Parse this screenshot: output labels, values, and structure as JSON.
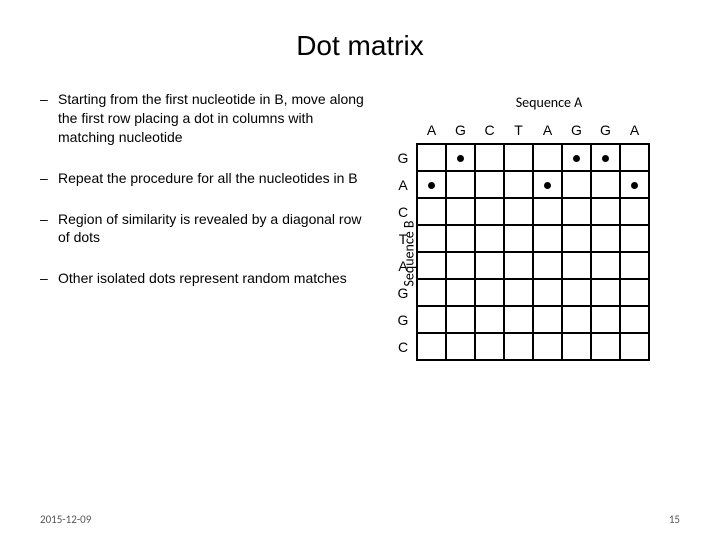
{
  "title": "Dot matrix",
  "bullets": [
    "Starting from the first nucleotide in B, move along the first row placing a dot in columns with matching nucleotide",
    "Repeat the procedure for all the nucleotides in B",
    "Region of similarity is revealed by a diagonal row of dots",
    "Other isolated dots represent random matches"
  ],
  "seqA": {
    "label": "Sequence A",
    "letters": [
      "A",
      "G",
      "C",
      "T",
      "A",
      "G",
      "G",
      "A"
    ]
  },
  "seqB": {
    "label": "Sequence B",
    "letters": [
      "G",
      "A",
      "C",
      "T",
      "A",
      "G",
      "G",
      "C"
    ]
  },
  "dots": [
    [
      0,
      1
    ],
    [
      0,
      5
    ],
    [
      0,
      6
    ],
    [
      1,
      0
    ],
    [
      1,
      4
    ],
    [
      1,
      7
    ]
  ],
  "footer": {
    "date": "2015-12-09",
    "page": "15"
  },
  "dash": "–"
}
